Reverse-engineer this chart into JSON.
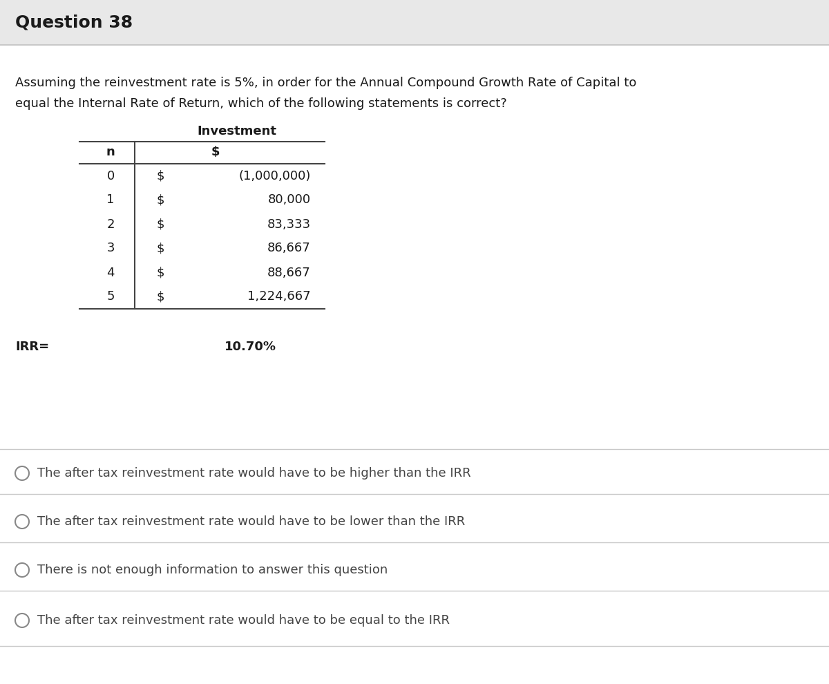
{
  "title": "Question 38",
  "question_text_line1": "Assuming the reinvestment rate is 5%, in order for the Annual Compound Growth Rate of Capital to",
  "question_text_line2": "equal the Internal Rate of Return, which of the following statements is correct?",
  "table_header_col1": "n",
  "table_header_col2": "Investment",
  "table_header_col2b": "$",
  "table_rows": [
    [
      "0",
      "$",
      "(1,000,000)"
    ],
    [
      "1",
      "$",
      "80,000"
    ],
    [
      "2",
      "$",
      "83,333"
    ],
    [
      "3",
      "$",
      "86,667"
    ],
    [
      "4",
      "$",
      "88,667"
    ],
    [
      "5",
      "$",
      "1,224,667"
    ]
  ],
  "irr_label": "IRR=",
  "irr_value": "10.70%",
  "options": [
    "The after tax reinvestment rate would have to be higher than the IRR",
    "The after tax reinvestment rate would have to be lower than the IRR",
    "There is not enough information to answer this question",
    "The after tax reinvestment rate would have to be equal to the IRR"
  ],
  "bg_color": "#f2f2f2",
  "content_bg": "#ffffff",
  "title_bar_bg": "#e8e8e8",
  "text_color": "#1a1a1a",
  "line_color": "#c8c8c8",
  "table_line_color": "#444444",
  "option_text_color": "#444444"
}
